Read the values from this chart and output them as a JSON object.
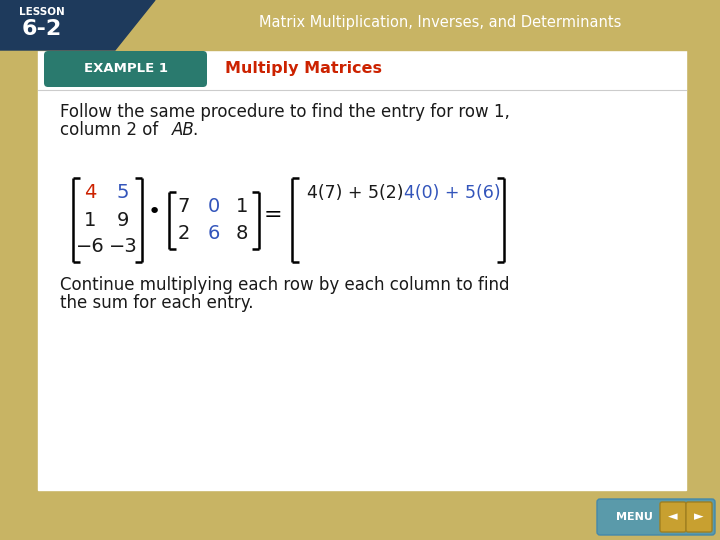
{
  "lesson_text_line1": "LESSON",
  "lesson_text_line2": "6-2",
  "header_title": "Matrix Multiplication, Inverses, and Determinants",
  "example_label": "EXAMPLE 1",
  "example_title": "Multiply Matrices",
  "body_text_line1": "Follow the same procedure to find the entry for row 1,",
  "body_text_line2": "column 2 of ",
  "body_text_italic": "AB",
  "body_text_end": ".",
  "continue_text_line1": "Continue multiplying each row by each column to find",
  "continue_text_line2": "the sum for each entry.",
  "tan_color": "#c8b464",
  "teal_color": "#2a7a6e",
  "white_color": "#ffffff",
  "navy_color": "#1e3a5c",
  "red_color": "#cc2200",
  "blue_color": "#3355bb",
  "dark_text": "#1a1a1a",
  "matrix_A": [
    [
      "4",
      "5"
    ],
    [
      "1",
      "9"
    ],
    [
      "−6",
      "−3"
    ]
  ],
  "matrix_A_colors": [
    [
      "#cc2200",
      "#3355bb"
    ],
    [
      "#1a1a1a",
      "#1a1a1a"
    ],
    [
      "#1a1a1a",
      "#1a1a1a"
    ]
  ],
  "matrix_B": [
    [
      "7",
      "0",
      "1"
    ],
    [
      "2",
      "6",
      "8"
    ]
  ],
  "matrix_B_colors": [
    [
      "#1a1a1a",
      "#3355bb",
      "#1a1a1a"
    ],
    [
      "#1a1a1a",
      "#3355bb",
      "#1a1a1a"
    ]
  ]
}
